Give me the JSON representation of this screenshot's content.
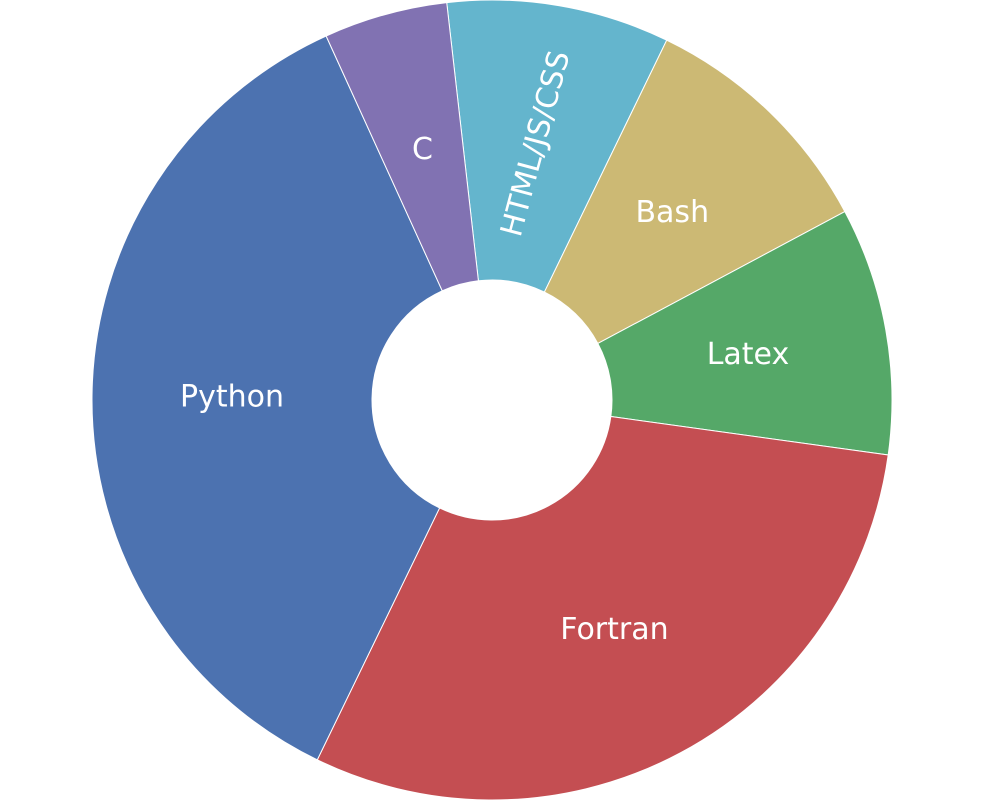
{
  "chart_data": {
    "type": "pie",
    "hole": true,
    "start": "top",
    "direction": "clockwise",
    "slices": [
      {
        "label": "HTML/JS/CSS",
        "value": 9,
        "color": "#64b5cd"
      },
      {
        "label": "Bash",
        "value": 10,
        "color": "#ccb974"
      },
      {
        "label": "Latex",
        "value": 10,
        "color": "#55a868"
      },
      {
        "label": "Fortran",
        "value": 30,
        "color": "#c44e52"
      },
      {
        "label": "Python",
        "value": 36,
        "color": "#4c72b0"
      },
      {
        "label": "C",
        "value": 5,
        "color": "#8172b2"
      }
    ]
  }
}
